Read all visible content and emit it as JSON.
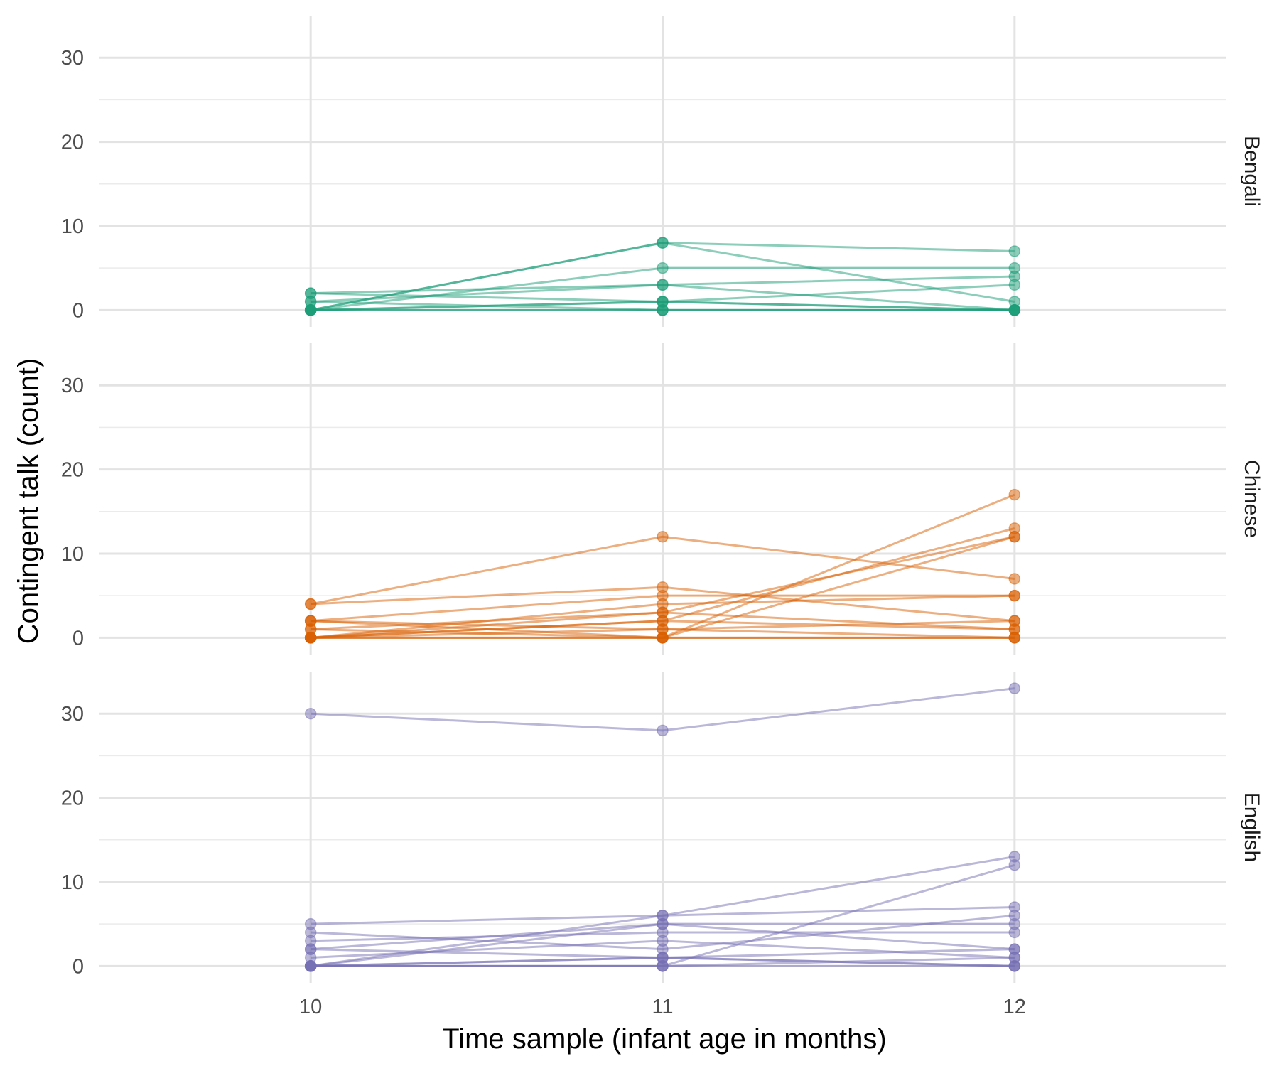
{
  "chart_data": {
    "type": "line",
    "xlabel": "Time sample (infant age in months)",
    "ylabel": "Contingent talk (count)",
    "x": [
      10,
      11,
      12
    ],
    "x_ticks": [
      "10",
      "11",
      "12"
    ],
    "xlim": [
      9.4,
      12.6
    ],
    "ylim": [
      -2,
      35
    ],
    "y_ticks": [
      "0",
      "10",
      "20",
      "30"
    ],
    "grid": true,
    "panels": [
      {
        "name": "Bengali",
        "color": "#1b9e77",
        "series": [
          {
            "values": [
              0,
              8,
              7
            ]
          },
          {
            "values": [
              0,
              8,
              1
            ]
          },
          {
            "values": [
              0,
              5,
              5
            ]
          },
          {
            "values": [
              2,
              3,
              4
            ]
          },
          {
            "values": [
              1,
              3,
              0
            ]
          },
          {
            "values": [
              0,
              1,
              3
            ]
          },
          {
            "values": [
              2,
              1,
              0
            ]
          },
          {
            "values": [
              1,
              0,
              0
            ]
          },
          {
            "values": [
              0,
              0,
              0
            ]
          },
          {
            "values": [
              0,
              0,
              0
            ]
          },
          {
            "values": [
              0,
              1,
              0
            ]
          }
        ]
      },
      {
        "name": "Chinese",
        "color": "#d95f02",
        "series": [
          {
            "values": [
              4,
              12,
              7
            ]
          },
          {
            "values": [
              4,
              6,
              2
            ]
          },
          {
            "values": [
              0,
              0,
              17
            ]
          },
          {
            "values": [
              0,
              2,
              13
            ]
          },
          {
            "values": [
              0,
              3,
              12
            ]
          },
          {
            "values": [
              2,
              0,
              12
            ]
          },
          {
            "values": [
              2,
              5,
              5
            ]
          },
          {
            "values": [
              0,
              4,
              5
            ]
          },
          {
            "values": [
              1,
              3,
              1
            ]
          },
          {
            "values": [
              0,
              2,
              1
            ]
          },
          {
            "values": [
              2,
              1,
              0
            ]
          },
          {
            "values": [
              1,
              0,
              0
            ]
          },
          {
            "values": [
              0,
              0,
              0
            ]
          },
          {
            "values": [
              0,
              1,
              2
            ]
          }
        ]
      },
      {
        "name": "English",
        "color": "#7570b3",
        "series": [
          {
            "values": [
              30,
              28,
              33
            ]
          },
          {
            "values": [
              0,
              6,
              13
            ]
          },
          {
            "values": [
              0,
              0,
              12
            ]
          },
          {
            "values": [
              5,
              6,
              7
            ]
          },
          {
            "values": [
              4,
              2,
              6
            ]
          },
          {
            "values": [
              2,
              5,
              5
            ]
          },
          {
            "values": [
              3,
              4,
              4
            ]
          },
          {
            "values": [
              0,
              5,
              2
            ]
          },
          {
            "values": [
              1,
              3,
              1
            ]
          },
          {
            "values": [
              2,
              1,
              0
            ]
          },
          {
            "values": [
              0,
              1,
              2
            ]
          },
          {
            "values": [
              0,
              0,
              1
            ]
          },
          {
            "values": [
              0,
              0,
              0
            ]
          },
          {
            "values": [
              0,
              1,
              0
            ]
          }
        ]
      }
    ]
  }
}
